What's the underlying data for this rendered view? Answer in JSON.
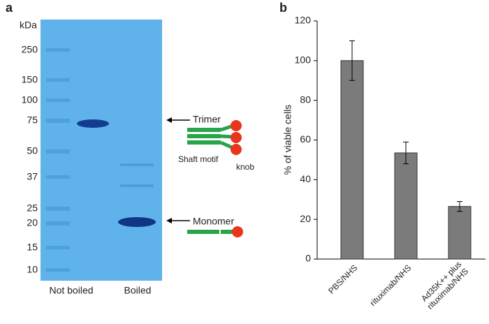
{
  "panel_a": {
    "label": "a",
    "unit": "kDa",
    "markers": [
      250,
      150,
      100,
      75,
      50,
      37,
      25,
      20,
      15,
      10
    ],
    "lanes": [
      "Not boiled",
      "Boiled"
    ],
    "annotations": {
      "trimer": "Trimer",
      "monomer": "Monomer",
      "shaft": "Shaft motif",
      "knob": "knob"
    }
  },
  "chart_data": {
    "type": "bar",
    "label": "b",
    "ylabel": "% of viable cells",
    "categories": [
      "PBS/NHS",
      "rituximab/NHS",
      "Ad35K++ plus\nrituximab/NHS"
    ],
    "values": [
      100,
      53.5,
      26.5
    ],
    "errors": [
      10,
      5.5,
      2.5
    ],
    "color": "#7b7b7b",
    "ylim": [
      0,
      120
    ],
    "yticks": [
      0,
      20,
      40,
      60,
      80,
      100,
      120
    ]
  }
}
